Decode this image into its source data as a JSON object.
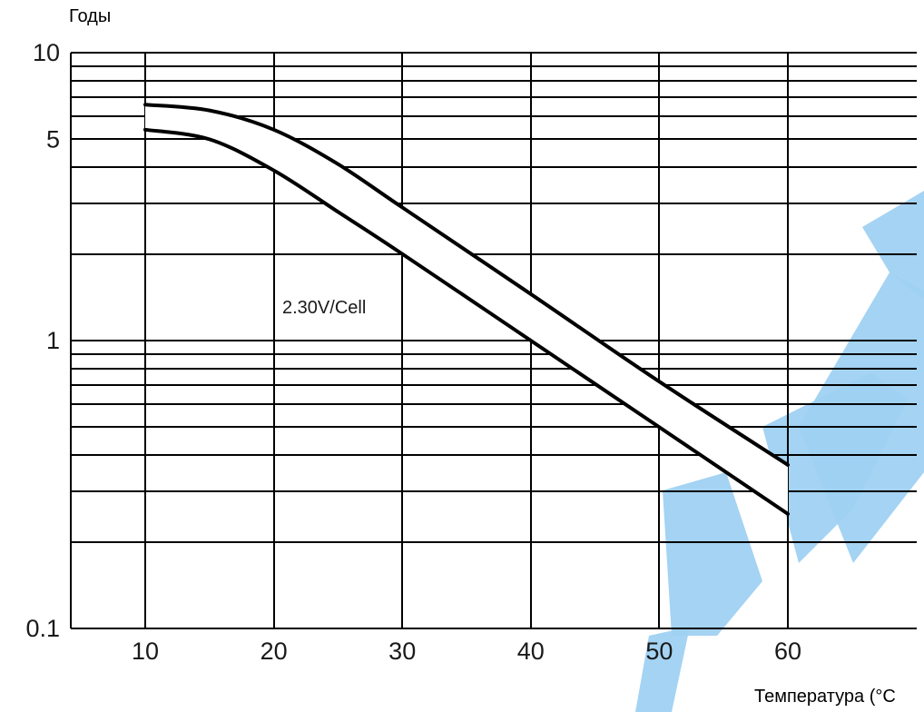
{
  "chart_data": {
    "type": "line",
    "title": "",
    "ylabel": "Годы",
    "xlabel": "Температура (°C",
    "y_scale": "log",
    "ylim": [
      0.1,
      10
    ],
    "xlim": [
      5,
      70
    ],
    "grid": true,
    "x_ticks": [
      "10",
      "20",
      "30",
      "40",
      "50",
      "60"
    ],
    "x_tick_values": [
      10,
      20,
      30,
      40,
      50,
      60
    ],
    "y_ticks": [
      "10",
      "5",
      "1",
      "0.1"
    ],
    "y_tick_values": [
      10,
      5,
      1,
      0.1
    ],
    "annotations": [
      {
        "text": "2.30V/Cell"
      }
    ],
    "series": [
      {
        "x": [
          10,
          15,
          20,
          25,
          30,
          40,
          50,
          60
        ],
        "y": [
          6.6,
          6.3,
          5.4,
          4.1,
          2.9,
          1.45,
          0.72,
          0.37
        ]
      },
      {
        "x": [
          10,
          15,
          20,
          25,
          30,
          40,
          50,
          60
        ],
        "y": [
          5.4,
          5.0,
          3.9,
          2.8,
          2.0,
          1.0,
          0.5,
          0.25
        ]
      }
    ],
    "watermark_color": "#9fd1f2",
    "line_color": "#000000"
  }
}
